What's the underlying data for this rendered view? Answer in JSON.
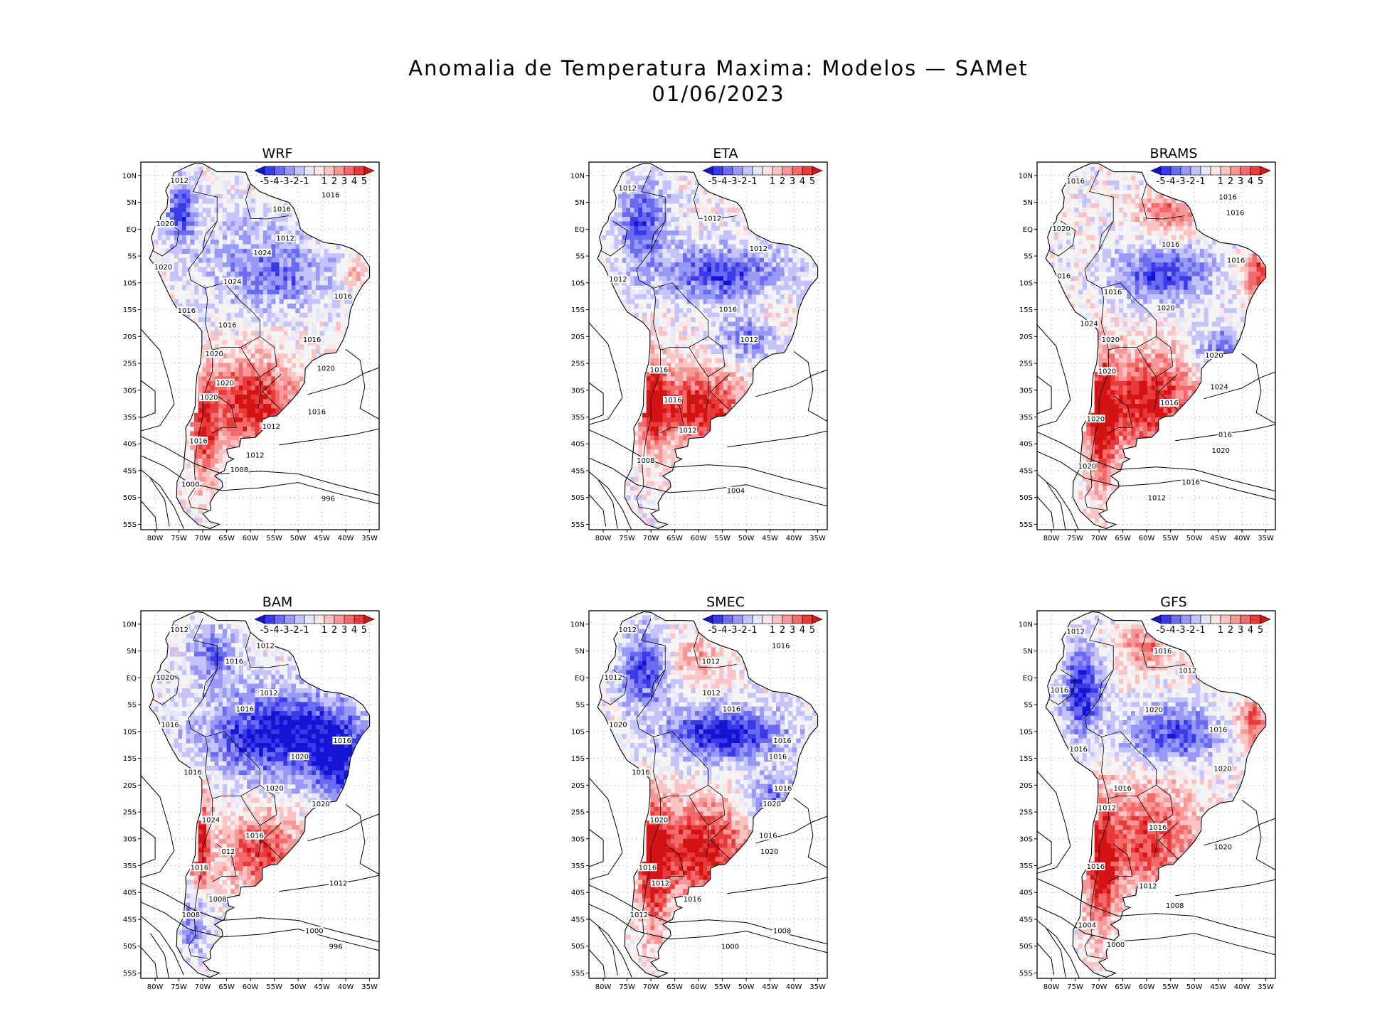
{
  "title": "Anomalia de Temperatura Maxima: Modelos — SAMet",
  "date": "01/06/2023",
  "colors": {
    "blue_scale": [
      "#1414d4",
      "#3a3ae8",
      "#6a6af2",
      "#9898f7",
      "#c4c4fb",
      "#e6e6fd"
    ],
    "red_scale": [
      "#fde6e6",
      "#fbc4c4",
      "#f79898",
      "#f26a6a",
      "#e83a3a",
      "#d41414"
    ],
    "land_gray": "#f4f4f4",
    "contour": "#000000",
    "grid": "#9a9a9a"
  },
  "colorbar": {
    "ticks": [
      "-5",
      "-4",
      "-3",
      "-2",
      "-1",
      "1",
      "2",
      "3",
      "4",
      "5"
    ]
  },
  "axes": {
    "lat_labels": [
      "10N",
      "5N",
      "EQ",
      "5S",
      "10S",
      "15S",
      "20S",
      "25S",
      "30S",
      "35S",
      "40S",
      "45S",
      "50S",
      "55S"
    ],
    "lon_labels": [
      "80W",
      "75W",
      "70W",
      "65W",
      "60W",
      "55W",
      "50W",
      "45W",
      "40W",
      "35W"
    ]
  },
  "panels": [
    {
      "name": "WRF",
      "isobar_labels": [
        "1012",
        "1016",
        "1016",
        "1020",
        "1012",
        "1024",
        "1020",
        "1024",
        "1016",
        "1016",
        "1016",
        "1016",
        "1020",
        "1020",
        "1020",
        "1020",
        "1016",
        "1012",
        "1016",
        "1012",
        "1008",
        "1000",
        "996"
      ]
    },
    {
      "name": "ETA",
      "isobar_labels": [
        "1012",
        "1012",
        "1012",
        "1012",
        "1016",
        "1012",
        "1016",
        "1016",
        "1012",
        "1008",
        "1004"
      ]
    },
    {
      "name": "BRAMS",
      "isobar_labels": [
        "1016",
        "1016",
        "1016",
        "1020",
        "1016",
        "1016",
        "016",
        "1016",
        "1020",
        "1024",
        "1020",
        "1020",
        "1020",
        "1024",
        "1016",
        "1020",
        "016",
        "1020",
        "1020",
        "1016",
        "1012"
      ]
    },
    {
      "name": "BAM",
      "isobar_labels": [
        "1012",
        "1012",
        "1016",
        "1020",
        "1012",
        "1016",
        "1016",
        "1016",
        "1020",
        "1016",
        "1020",
        "1020",
        "1024",
        "1016",
        "012",
        "1016",
        "1012",
        "1008",
        "1008",
        "1000",
        "996"
      ]
    },
    {
      "name": "SMEC",
      "isobar_labels": [
        "1012",
        "1016",
        "1012",
        "1012",
        "1012",
        "1016",
        "1020",
        "1016",
        "1016",
        "1016",
        "1016",
        "1020",
        "1020",
        "1016",
        "1020",
        "1016",
        "1012",
        "1016",
        "1012",
        "1008",
        "1000"
      ]
    },
    {
      "name": "GFS",
      "isobar_labels": [
        "1012",
        "1016",
        "1012",
        "1016",
        "1020",
        "1016",
        "1016",
        "1020",
        "1016",
        "1012",
        "1016",
        "1020",
        "1016",
        "1012",
        "1008",
        "1004",
        "1000"
      ]
    }
  ]
}
